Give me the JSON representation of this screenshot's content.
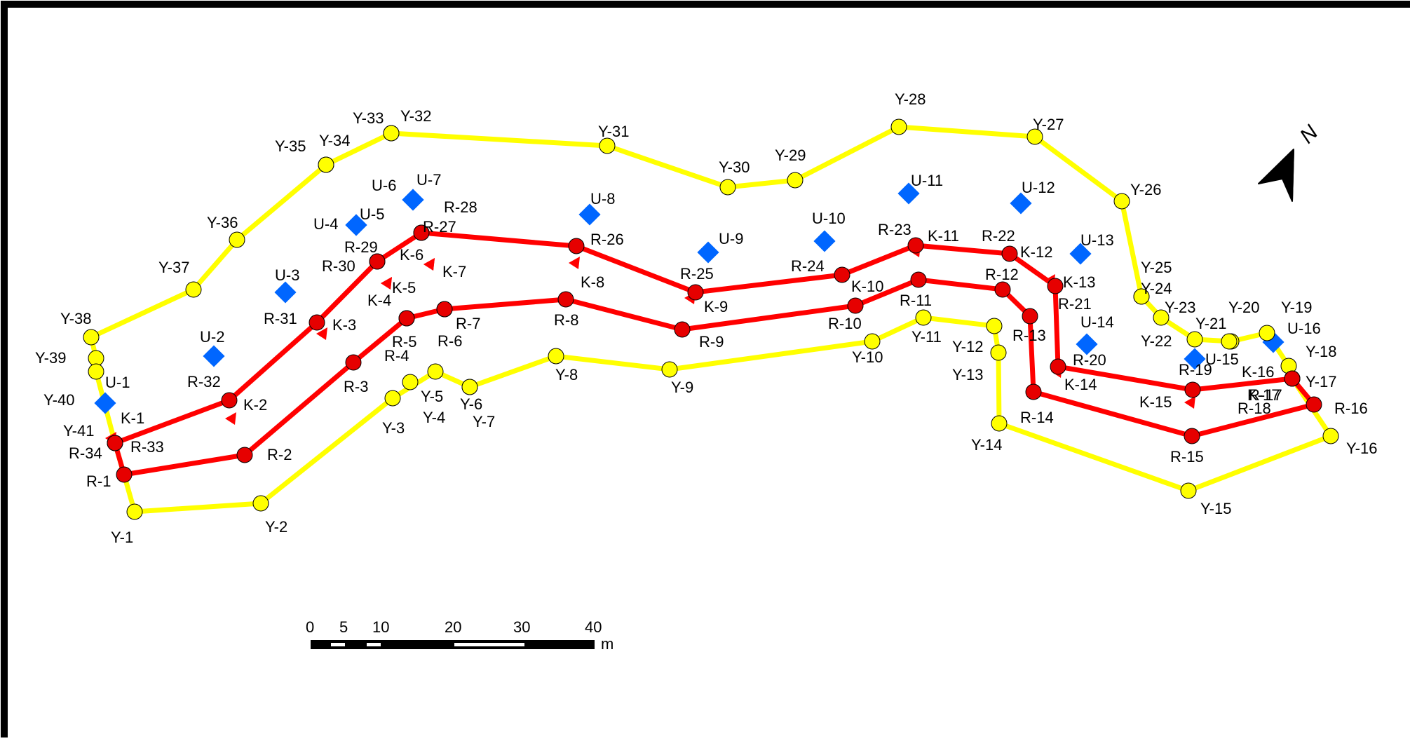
{
  "map": {
    "colors": {
      "yellow": "#ffff00",
      "red": "#ff0000",
      "red_point": "#e60000",
      "blue": "#0066ff",
      "outline": "#000000"
    },
    "yellow_points": [
      {
        "id": "Y-1"
      },
      {
        "id": "Y-2"
      },
      {
        "id": "Y-3"
      },
      {
        "id": "Y-4"
      },
      {
        "id": "Y-5"
      },
      {
        "id": "Y-6"
      },
      {
        "id": "Y-7"
      },
      {
        "id": "Y-8"
      },
      {
        "id": "Y-9"
      },
      {
        "id": "Y-10"
      },
      {
        "id": "Y-11"
      },
      {
        "id": "Y-12"
      },
      {
        "id": "Y-13"
      },
      {
        "id": "Y-14"
      },
      {
        "id": "Y-15"
      },
      {
        "id": "Y-16"
      },
      {
        "id": "Y-17"
      },
      {
        "id": "Y-18"
      },
      {
        "id": "Y-19"
      },
      {
        "id": "Y-20"
      },
      {
        "id": "Y-21"
      },
      {
        "id": "Y-22"
      },
      {
        "id": "Y-23"
      },
      {
        "id": "Y-24"
      },
      {
        "id": "Y-25"
      },
      {
        "id": "Y-26"
      },
      {
        "id": "Y-27"
      },
      {
        "id": "Y-28"
      },
      {
        "id": "Y-29"
      },
      {
        "id": "Y-30"
      },
      {
        "id": "Y-31"
      },
      {
        "id": "Y-32"
      },
      {
        "id": "Y-33"
      },
      {
        "id": "Y-34"
      },
      {
        "id": "Y-35"
      },
      {
        "id": "Y-36"
      },
      {
        "id": "Y-37"
      },
      {
        "id": "Y-38"
      },
      {
        "id": "Y-39"
      },
      {
        "id": "Y-40"
      },
      {
        "id": "Y-41"
      }
    ],
    "red_points": [
      {
        "id": "R-1"
      },
      {
        "id": "R-2"
      },
      {
        "id": "R-3"
      },
      {
        "id": "R-4"
      },
      {
        "id": "R-5"
      },
      {
        "id": "R-6"
      },
      {
        "id": "R-7"
      },
      {
        "id": "R-8"
      },
      {
        "id": "R-9"
      },
      {
        "id": "R-10"
      },
      {
        "id": "R-11"
      },
      {
        "id": "R-12"
      },
      {
        "id": "R-13"
      },
      {
        "id": "R-14"
      },
      {
        "id": "R-15"
      },
      {
        "id": "R-16"
      },
      {
        "id": "R-17"
      },
      {
        "id": "R-18"
      },
      {
        "id": "R-19"
      },
      {
        "id": "R-20"
      },
      {
        "id": "R-21"
      },
      {
        "id": "R-22"
      },
      {
        "id": "R-23"
      },
      {
        "id": "R-24"
      },
      {
        "id": "R-25"
      },
      {
        "id": "R-26"
      },
      {
        "id": "R-27"
      },
      {
        "id": "R-28"
      },
      {
        "id": "R-29"
      },
      {
        "id": "R-30"
      },
      {
        "id": "R-31"
      },
      {
        "id": "R-32"
      },
      {
        "id": "R-33"
      },
      {
        "id": "R-34"
      }
    ],
    "k_markers": [
      {
        "id": "K-1"
      },
      {
        "id": "K-2"
      },
      {
        "id": "K-3"
      },
      {
        "id": "K-4"
      },
      {
        "id": "K-5"
      },
      {
        "id": "K-6"
      },
      {
        "id": "K-7"
      },
      {
        "id": "K-8"
      },
      {
        "id": "K-9"
      },
      {
        "id": "K-10"
      },
      {
        "id": "K-11"
      },
      {
        "id": "K-12"
      },
      {
        "id": "K-13"
      },
      {
        "id": "K-14"
      },
      {
        "id": "K-15"
      },
      {
        "id": "K-16"
      },
      {
        "id": "K-17"
      }
    ],
    "u_markers": [
      {
        "id": "U-1"
      },
      {
        "id": "U-2"
      },
      {
        "id": "U-3"
      },
      {
        "id": "U-4"
      },
      {
        "id": "U-5"
      },
      {
        "id": "U-6"
      },
      {
        "id": "U-7"
      },
      {
        "id": "U-8"
      },
      {
        "id": "U-9"
      },
      {
        "id": "U-10"
      },
      {
        "id": "U-11"
      },
      {
        "id": "U-12"
      },
      {
        "id": "U-13"
      },
      {
        "id": "U-14"
      },
      {
        "id": "U-15"
      },
      {
        "id": "U-16"
      }
    ],
    "scale_bar": {
      "ticks": [
        "0",
        "5",
        "10",
        "20",
        "30",
        "40"
      ],
      "unit": "m"
    },
    "north_arrow": {
      "label": "N"
    }
  }
}
